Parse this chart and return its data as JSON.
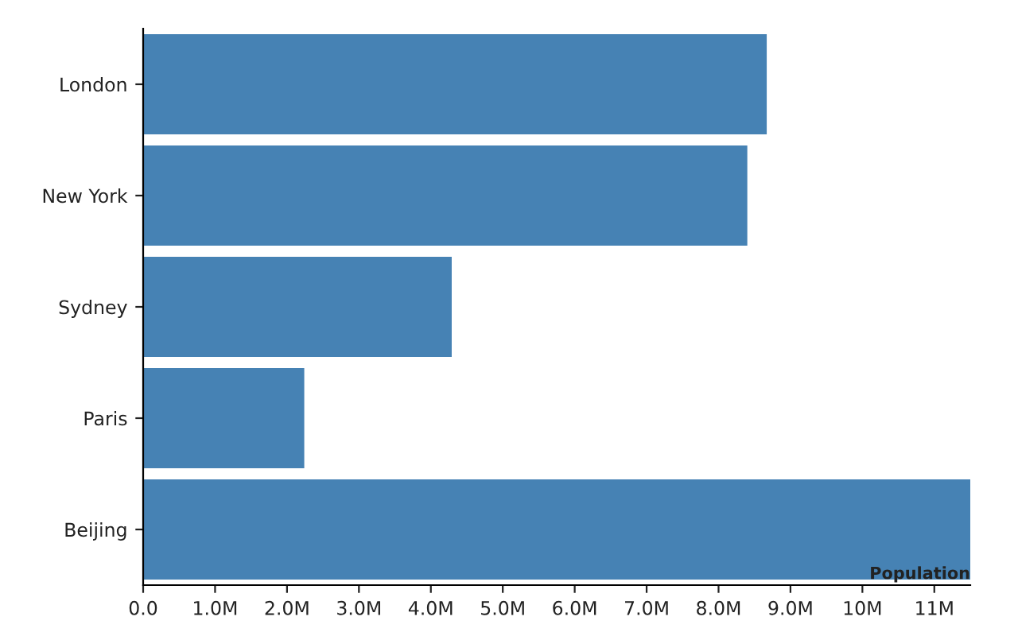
{
  "chart_data": {
    "type": "bar",
    "orientation": "horizontal",
    "xlabel": "Population",
    "categories": [
      "London",
      "New York",
      "Sydney",
      "Paris",
      "Beijing"
    ],
    "values": [
      8670000,
      8400000,
      4290000,
      2240000,
      11500000
    ],
    "color": "#4682b4",
    "xlim": [
      0,
      11500000
    ],
    "xticks": [
      {
        "value": 0,
        "label": "0.0"
      },
      {
        "value": 1000000,
        "label": "1.0M"
      },
      {
        "value": 2000000,
        "label": "2.0M"
      },
      {
        "value": 3000000,
        "label": "3.0M"
      },
      {
        "value": 4000000,
        "label": "4.0M"
      },
      {
        "value": 5000000,
        "label": "5.0M"
      },
      {
        "value": 6000000,
        "label": "6.0M"
      },
      {
        "value": 7000000,
        "label": "7.0M"
      },
      {
        "value": 8000000,
        "label": "8.0M"
      },
      {
        "value": 9000000,
        "label": "9.0M"
      },
      {
        "value": 10000000,
        "label": "10M"
      },
      {
        "value": 11000000,
        "label": "11M"
      }
    ],
    "grid": false,
    "legend": false
  }
}
